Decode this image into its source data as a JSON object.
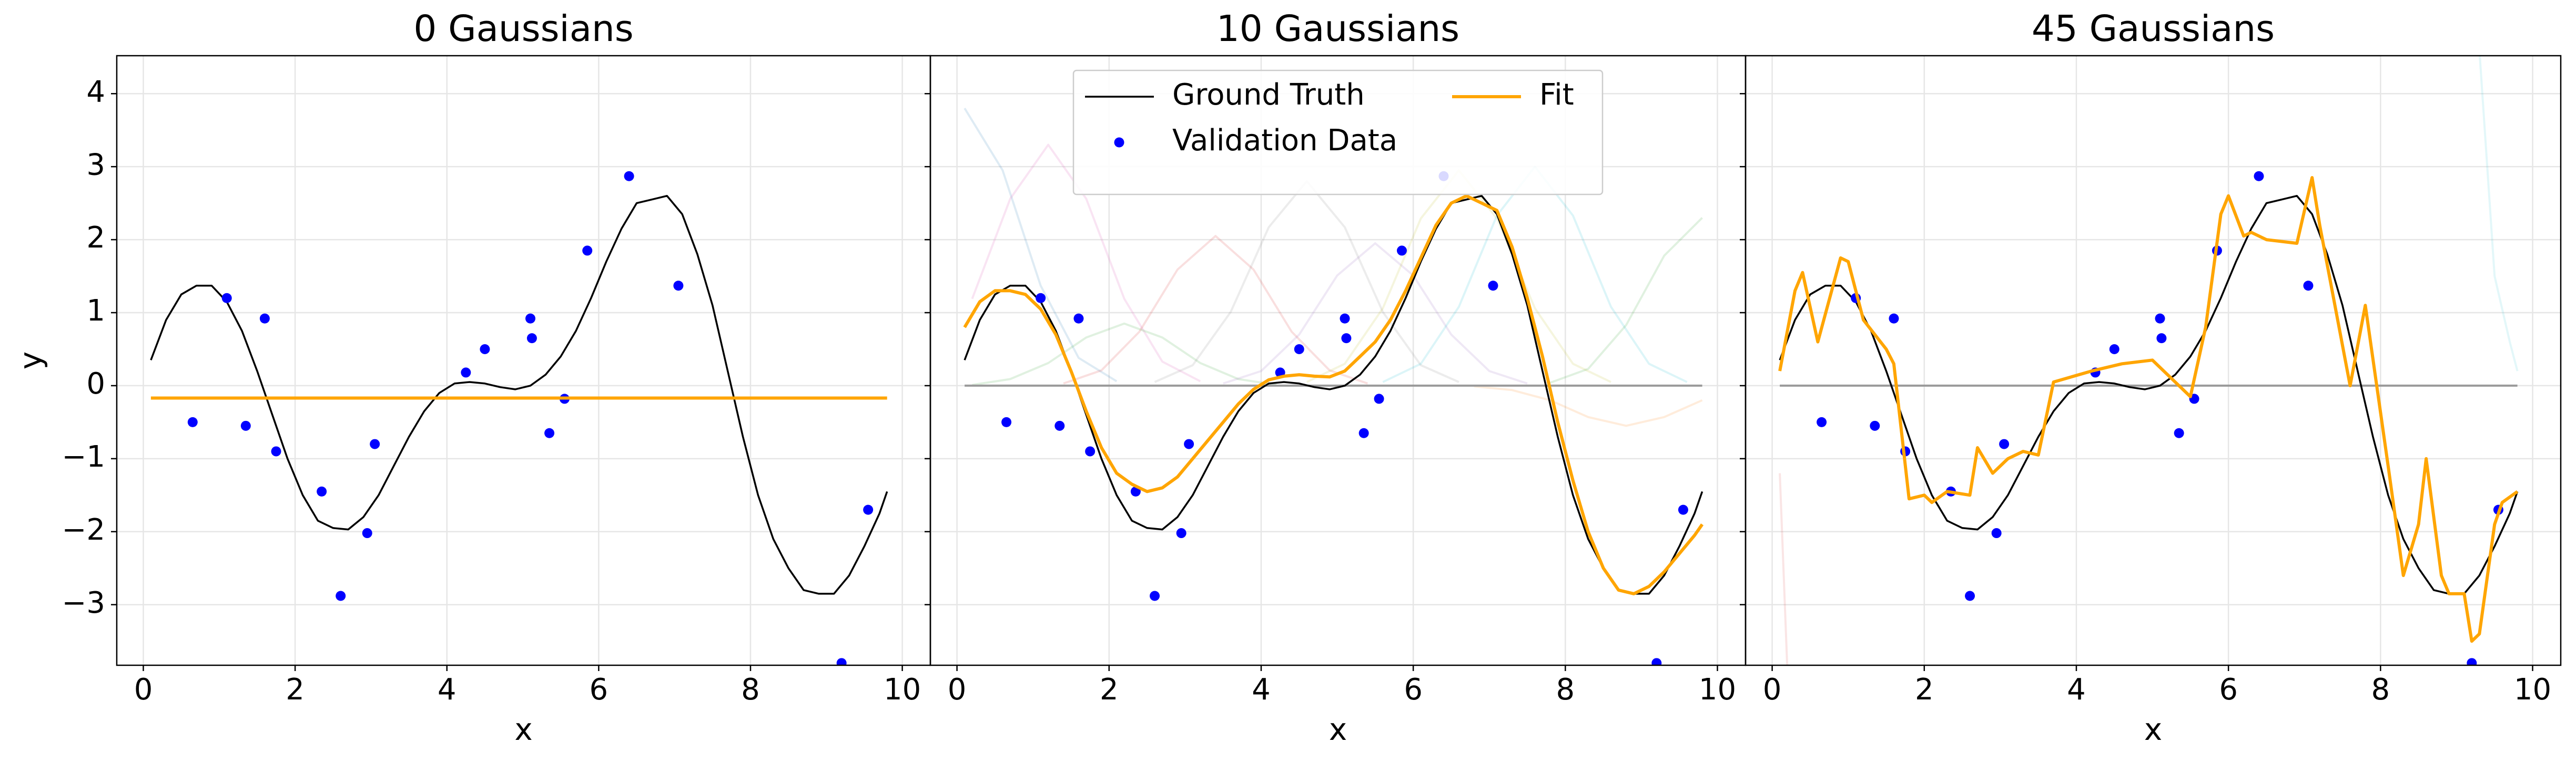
{
  "chart_data": [
    {
      "type": "line",
      "title": "0 Gaussians",
      "xlabel": "x",
      "ylabel": "y",
      "xlim": [
        -0.35,
        10.37
      ],
      "ylim": [
        -3.83,
        4.52
      ],
      "xticks": [
        0,
        2,
        4,
        6,
        8,
        10
      ],
      "yticks": [
        {
          "value": -3,
          "label": "−3"
        },
        {
          "value": -2,
          "label": "−2"
        },
        {
          "value": -1,
          "label": "−1"
        },
        0,
        1,
        2,
        3,
        4
      ],
      "show_ytick_labels": true,
      "grid": true,
      "series": [
        {
          "type": "line",
          "color": "#000000",
          "width": 3.5,
          "x": [
            0.1,
            0.3,
            0.5,
            0.7,
            0.9,
            1.1,
            1.3,
            1.5,
            1.7,
            1.9,
            2.1,
            2.3,
            2.5,
            2.7,
            2.9,
            3.1,
            3.3,
            3.5,
            3.7,
            3.9,
            4.1,
            4.3,
            4.5,
            4.7,
            4.9,
            5.1,
            5.3,
            5.5,
            5.7,
            5.9,
            6.1,
            6.3,
            6.5,
            6.7,
            6.9,
            7.1,
            7.3,
            7.5,
            7.7,
            7.9,
            8.1,
            8.3,
            8.5,
            8.7,
            8.9,
            9.1,
            9.3,
            9.5,
            9.7,
            9.8
          ],
          "values": [
            0.35,
            0.9,
            1.25,
            1.37,
            1.37,
            1.15,
            0.75,
            0.2,
            -0.4,
            -1.0,
            -1.5,
            -1.85,
            -1.95,
            -1.97,
            -1.8,
            -1.5,
            -1.1,
            -0.7,
            -0.35,
            -0.1,
            0.03,
            0.05,
            0.03,
            -0.02,
            -0.05,
            0.0,
            0.15,
            0.4,
            0.75,
            1.2,
            1.7,
            2.15,
            2.5,
            2.55,
            2.6,
            2.35,
            1.8,
            1.1,
            0.2,
            -0.7,
            -1.5,
            -2.1,
            -2.5,
            -2.8,
            -2.85,
            -2.85,
            -2.6,
            -2.2,
            -1.75,
            -1.45
          ]
        },
        {
          "type": "scatter",
          "color": "#0000ff",
          "x": [
            0.65,
            1.1,
            1.35,
            1.6,
            1.75,
            2.35,
            2.6,
            2.95,
            3.05,
            4.25,
            4.5,
            5.1,
            5.12,
            5.35,
            5.55,
            5.85,
            6.4,
            7.05,
            9.2,
            9.55
          ],
          "values": [
            -0.5,
            1.2,
            -0.55,
            0.92,
            -0.9,
            -1.45,
            -2.88,
            -2.02,
            -0.8,
            0.18,
            0.5,
            0.92,
            0.65,
            -0.65,
            -0.18,
            1.85,
            2.87,
            1.37,
            -3.8,
            -1.7
          ]
        },
        {
          "type": "line",
          "color": "#ffa500",
          "width": 6,
          "x": [
            0.1,
            9.8
          ],
          "values": [
            -0.17,
            -0.17
          ]
        }
      ]
    },
    {
      "type": "line",
      "title": "10 Gaussians",
      "xlabel": "x",
      "xlim": [
        -0.35,
        10.37
      ],
      "ylim": [
        -3.83,
        4.52
      ],
      "xticks": [
        0,
        2,
        4,
        6,
        8,
        10
      ],
      "yticks": [
        -3,
        -2,
        -1,
        0,
        1,
        2,
        3,
        4
      ],
      "show_ytick_labels": false,
      "grid": true,
      "legend": "upper center",
      "legend_columns": 2,
      "series": [
        {
          "type": "line",
          "color": "#1f77b4",
          "alpha": 0.15,
          "width": 4,
          "x": [
            0.1,
            0.6,
            1.1,
            1.6,
            2.1
          ],
          "values": [
            3.8,
            2.95,
            1.37,
            0.38,
            0.06
          ]
        },
        {
          "type": "line",
          "color": "#e377c2",
          "alpha": 0.2,
          "width": 4,
          "x": [
            0.2,
            0.7,
            1.2,
            1.7,
            2.2,
            2.7,
            3.2
          ],
          "values": [
            1.19,
            2.56,
            3.3,
            2.56,
            1.19,
            0.33,
            0.06
          ]
        },
        {
          "type": "line",
          "color": "#2ca02c",
          "alpha": 0.15,
          "width": 4,
          "x": [
            0.2,
            0.7,
            1.2,
            1.7,
            2.2,
            2.7,
            3.2,
            3.7,
            4.2
          ],
          "values": [
            0.01,
            0.09,
            0.31,
            0.66,
            0.85,
            0.66,
            0.31,
            0.09,
            0.01
          ]
        },
        {
          "type": "line",
          "color": "#d62728",
          "alpha": 0.15,
          "width": 4,
          "x": [
            1.4,
            1.9,
            2.4,
            2.9,
            3.4,
            3.9,
            4.4,
            4.9,
            5.4
          ],
          "values": [
            0.03,
            0.21,
            0.74,
            1.59,
            2.05,
            1.59,
            0.74,
            0.21,
            0.03
          ]
        },
        {
          "type": "line",
          "color": "#7f7f7f",
          "alpha": 0.15,
          "width": 4,
          "x": [
            2.6,
            3.1,
            3.6,
            4.1,
            4.6,
            5.1,
            5.6,
            6.1,
            6.6
          ],
          "values": [
            0.05,
            0.28,
            1.01,
            2.17,
            2.8,
            2.17,
            1.01,
            0.28,
            0.05
          ]
        },
        {
          "type": "line",
          "color": "#9467bd",
          "alpha": 0.15,
          "width": 4,
          "x": [
            3.5,
            4.0,
            4.5,
            5.0,
            5.5,
            6.0,
            6.5,
            7.0,
            7.5
          ],
          "values": [
            0.03,
            0.2,
            0.7,
            1.51,
            1.95,
            1.51,
            0.7,
            0.2,
            0.03
          ]
        },
        {
          "type": "line",
          "color": "#bcbd22",
          "alpha": 0.15,
          "width": 4,
          "x": [
            4.6,
            5.1,
            5.6,
            6.1,
            6.6,
            7.1,
            7.6,
            8.1,
            8.6
          ],
          "values": [
            0.05,
            0.3,
            1.06,
            2.29,
            2.95,
            2.29,
            1.06,
            0.3,
            0.05
          ]
        },
        {
          "type": "line",
          "color": "#17becf",
          "alpha": 0.15,
          "width": 4,
          "x": [
            5.6,
            6.1,
            6.6,
            7.1,
            7.6,
            8.1,
            8.6,
            9.1,
            9.6
          ],
          "values": [
            0.05,
            0.3,
            1.08,
            2.33,
            3.0,
            2.33,
            1.08,
            0.3,
            0.05
          ]
        },
        {
          "type": "line",
          "color": "#ff7f0e",
          "alpha": 0.15,
          "width": 4,
          "x": [
            6.8,
            7.3,
            7.8,
            8.3,
            8.8,
            9.3,
            9.8
          ],
          "values": [
            -0.01,
            -0.06,
            -0.2,
            -0.43,
            -0.55,
            -0.43,
            -0.2
          ]
        },
        {
          "type": "line",
          "color": "#2ca02c",
          "alpha": 0.15,
          "width": 4,
          "x": [
            7.8,
            8.3,
            8.8,
            9.3,
            9.8
          ],
          "values": [
            0.04,
            0.23,
            0.83,
            1.78,
            2.3
          ]
        },
        {
          "type": "line",
          "color": "#9a9a9a",
          "width": 4,
          "x": [
            0.1,
            9.8
          ],
          "values": [
            0,
            0
          ]
        },
        {
          "name": "Ground Truth",
          "type": "line",
          "color": "#000000",
          "width": 3.5,
          "x": [
            0.1,
            0.3,
            0.5,
            0.7,
            0.9,
            1.1,
            1.3,
            1.5,
            1.7,
            1.9,
            2.1,
            2.3,
            2.5,
            2.7,
            2.9,
            3.1,
            3.3,
            3.5,
            3.7,
            3.9,
            4.1,
            4.3,
            4.5,
            4.7,
            4.9,
            5.1,
            5.3,
            5.5,
            5.7,
            5.9,
            6.1,
            6.3,
            6.5,
            6.7,
            6.9,
            7.1,
            7.3,
            7.5,
            7.7,
            7.9,
            8.1,
            8.3,
            8.5,
            8.7,
            8.9,
            9.1,
            9.3,
            9.5,
            9.7,
            9.8
          ],
          "values": [
            0.35,
            0.9,
            1.25,
            1.37,
            1.37,
            1.15,
            0.75,
            0.2,
            -0.4,
            -1.0,
            -1.5,
            -1.85,
            -1.95,
            -1.97,
            -1.8,
            -1.5,
            -1.1,
            -0.7,
            -0.35,
            -0.1,
            0.03,
            0.05,
            0.03,
            -0.02,
            -0.05,
            0.0,
            0.15,
            0.4,
            0.75,
            1.2,
            1.7,
            2.15,
            2.5,
            2.55,
            2.6,
            2.35,
            1.8,
            1.1,
            0.2,
            -0.7,
            -1.5,
            -2.1,
            -2.5,
            -2.8,
            -2.85,
            -2.85,
            -2.6,
            -2.2,
            -1.75,
            -1.45
          ]
        },
        {
          "name": "Validation Data",
          "type": "scatter",
          "color": "#0000ff",
          "x": [
            0.65,
            1.1,
            1.35,
            1.6,
            1.75,
            2.35,
            2.6,
            2.95,
            3.05,
            4.25,
            4.5,
            5.1,
            5.12,
            5.35,
            5.55,
            5.85,
            6.4,
            7.05,
            9.2,
            9.55
          ],
          "values": [
            -0.5,
            1.2,
            -0.55,
            0.92,
            -0.9,
            -1.45,
            -2.88,
            -2.02,
            -0.8,
            0.18,
            0.5,
            0.92,
            0.65,
            -0.65,
            -0.18,
            1.85,
            2.87,
            1.37,
            -3.8,
            -1.7
          ]
        },
        {
          "name": "Fit",
          "type": "line",
          "color": "#ffa500",
          "width": 6,
          "x": [
            0.1,
            0.3,
            0.5,
            0.7,
            0.9,
            1.1,
            1.3,
            1.5,
            1.7,
            1.9,
            2.1,
            2.3,
            2.5,
            2.7,
            2.9,
            3.1,
            3.3,
            3.5,
            3.7,
            3.9,
            4.1,
            4.3,
            4.5,
            4.7,
            4.9,
            5.1,
            5.3,
            5.5,
            5.7,
            5.9,
            6.1,
            6.3,
            6.5,
            6.7,
            6.9,
            7.1,
            7.3,
            7.5,
            7.7,
            7.9,
            8.1,
            8.3,
            8.5,
            8.7,
            8.9,
            9.1,
            9.3,
            9.5,
            9.7,
            9.8
          ],
          "values": [
            0.8,
            1.15,
            1.3,
            1.3,
            1.25,
            1.05,
            0.7,
            0.2,
            -0.35,
            -0.85,
            -1.2,
            -1.35,
            -1.45,
            -1.4,
            -1.25,
            -1.0,
            -0.75,
            -0.5,
            -0.25,
            -0.05,
            0.08,
            0.13,
            0.15,
            0.13,
            0.12,
            0.2,
            0.4,
            0.6,
            0.9,
            1.3,
            1.75,
            2.2,
            2.5,
            2.6,
            2.5,
            2.4,
            1.9,
            1.2,
            0.4,
            -0.5,
            -1.3,
            -2.0,
            -2.5,
            -2.8,
            -2.85,
            -2.75,
            -2.55,
            -2.3,
            -2.05,
            -1.9
          ]
        }
      ]
    },
    {
      "type": "line",
      "title": "45 Gaussians",
      "xlabel": "x",
      "xlim": [
        -0.35,
        10.37
      ],
      "ylim": [
        -3.83,
        4.52
      ],
      "xticks": [
        0,
        2,
        4,
        6,
        8,
        10
      ],
      "yticks": [
        -3,
        -2,
        -1,
        0,
        1,
        2,
        3,
        4
      ],
      "show_ytick_labels": false,
      "grid": true,
      "series": [
        {
          "type": "line",
          "color": "#d62728",
          "alpha": 0.12,
          "width": 4,
          "x": [
            0.1,
            0.2,
            0.3
          ],
          "values": [
            -1.2,
            -3.9,
            -3.9
          ]
        },
        {
          "type": "line",
          "color": "#17becf",
          "alpha": 0.12,
          "width": 4,
          "x": [
            9.3,
            9.5,
            9.7,
            9.8
          ],
          "values": [
            4.6,
            1.5,
            0.6,
            0.2
          ]
        },
        {
          "type": "line",
          "color": "#9a9a9a",
          "width": 4,
          "x": [
            0.1,
            9.8
          ],
          "values": [
            0,
            0
          ]
        },
        {
          "type": "line",
          "color": "#000000",
          "width": 3.5,
          "x": [
            0.1,
            0.3,
            0.5,
            0.7,
            0.9,
            1.1,
            1.3,
            1.5,
            1.7,
            1.9,
            2.1,
            2.3,
            2.5,
            2.7,
            2.9,
            3.1,
            3.3,
            3.5,
            3.7,
            3.9,
            4.1,
            4.3,
            4.5,
            4.7,
            4.9,
            5.1,
            5.3,
            5.5,
            5.7,
            5.9,
            6.1,
            6.3,
            6.5,
            6.7,
            6.9,
            7.1,
            7.3,
            7.5,
            7.7,
            7.9,
            8.1,
            8.3,
            8.5,
            8.7,
            8.9,
            9.1,
            9.3,
            9.5,
            9.7,
            9.8
          ],
          "values": [
            0.35,
            0.9,
            1.25,
            1.37,
            1.37,
            1.15,
            0.75,
            0.2,
            -0.4,
            -1.0,
            -1.5,
            -1.85,
            -1.95,
            -1.97,
            -1.8,
            -1.5,
            -1.1,
            -0.7,
            -0.35,
            -0.1,
            0.03,
            0.05,
            0.03,
            -0.02,
            -0.05,
            0.0,
            0.15,
            0.4,
            0.75,
            1.2,
            1.7,
            2.15,
            2.5,
            2.55,
            2.6,
            2.35,
            1.8,
            1.1,
            0.2,
            -0.7,
            -1.5,
            -2.1,
            -2.5,
            -2.8,
            -2.85,
            -2.85,
            -2.6,
            -2.2,
            -1.75,
            -1.45
          ]
        },
        {
          "type": "scatter",
          "color": "#0000ff",
          "x": [
            0.65,
            1.1,
            1.35,
            1.6,
            1.75,
            2.35,
            2.6,
            2.95,
            3.05,
            4.25,
            4.5,
            5.1,
            5.12,
            5.35,
            5.55,
            5.85,
            6.4,
            7.05,
            9.2,
            9.55
          ],
          "values": [
            -0.5,
            1.2,
            -0.55,
            0.92,
            -0.9,
            -1.45,
            -2.88,
            -2.02,
            -0.8,
            0.18,
            0.5,
            0.92,
            0.65,
            -0.65,
            -0.18,
            1.85,
            2.87,
            1.37,
            -3.8,
            -1.7
          ]
        },
        {
          "type": "line",
          "color": "#ffa500",
          "width": 6,
          "x": [
            0.1,
            0.3,
            0.4,
            0.6,
            0.9,
            1.0,
            1.2,
            1.5,
            1.6,
            1.8,
            2.0,
            2.1,
            2.3,
            2.6,
            2.7,
            2.9,
            3.1,
            3.3,
            3.5,
            3.7,
            4.2,
            4.6,
            5.0,
            5.3,
            5.5,
            5.7,
            5.9,
            6.0,
            6.2,
            6.3,
            6.5,
            6.9,
            7.1,
            7.2,
            7.6,
            7.8,
            8.1,
            8.3,
            8.5,
            8.6,
            8.8,
            8.9,
            9.1,
            9.2,
            9.3,
            9.5,
            9.6,
            9.8
          ],
          "values": [
            0.2,
            1.3,
            1.55,
            0.6,
            1.75,
            1.7,
            0.9,
            0.5,
            0.3,
            -1.55,
            -1.5,
            -1.6,
            -1.45,
            -1.5,
            -0.85,
            -1.2,
            -1.0,
            -0.9,
            -0.95,
            0.05,
            0.2,
            0.3,
            0.35,
            0.05,
            -0.15,
            0.8,
            2.35,
            2.6,
            2.05,
            2.1,
            2.0,
            1.95,
            2.85,
            2.2,
            0.0,
            1.1,
            -1.1,
            -2.6,
            -1.9,
            -1.0,
            -2.6,
            -2.85,
            -2.85,
            -3.5,
            -3.4,
            -1.9,
            -1.6,
            -1.45
          ]
        }
      ]
    }
  ]
}
